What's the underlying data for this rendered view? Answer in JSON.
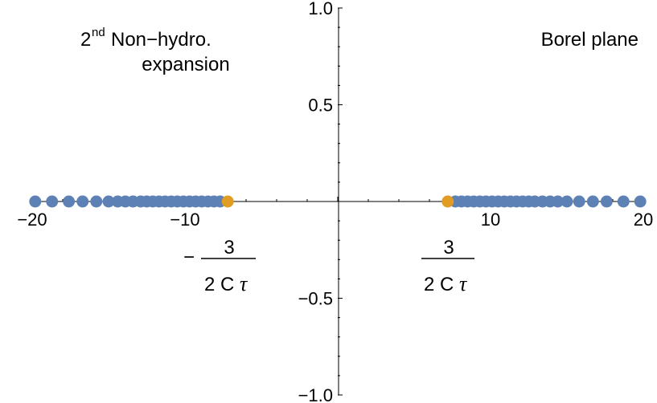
{
  "chart_data": {
    "type": "scatter",
    "title": "",
    "xlabel": "",
    "ylabel": "",
    "xlim": [
      -20,
      20
    ],
    "ylim": [
      -1,
      1
    ],
    "x_ticks": [
      {
        "value": -20,
        "label": "−20"
      },
      {
        "value": -10,
        "label": "−10"
      },
      {
        "value": 10,
        "label": "10"
      },
      {
        "value": 20,
        "label": "20"
      }
    ],
    "y_ticks": [
      {
        "value": 1.0,
        "label": "1.0"
      },
      {
        "value": 0.5,
        "label": "0.5"
      },
      {
        "value": -0.5,
        "label": "−0.5"
      },
      {
        "value": -1.0,
        "label": "−1.0"
      }
    ],
    "series": [
      {
        "color": "#5e81b5",
        "points": [
          {
            "x": -19.8,
            "y": 0
          },
          {
            "x": -18.7,
            "y": 0
          },
          {
            "x": -17.6,
            "y": 0
          },
          {
            "x": -16.7,
            "y": 0
          },
          {
            "x": -15.8,
            "y": 0
          },
          {
            "x": -15.0,
            "y": 0
          },
          {
            "x": -14.4,
            "y": 0
          },
          {
            "x": -13.9,
            "y": 0
          },
          {
            "x": -13.4,
            "y": 0
          },
          {
            "x": -12.9,
            "y": 0
          },
          {
            "x": -12.5,
            "y": 0
          },
          {
            "x": -12.1,
            "y": 0
          },
          {
            "x": -11.7,
            "y": 0
          },
          {
            "x": -11.3,
            "y": 0
          },
          {
            "x": -10.9,
            "y": 0
          },
          {
            "x": -10.5,
            "y": 0
          },
          {
            "x": -10.1,
            "y": 0
          },
          {
            "x": -9.7,
            "y": 0
          },
          {
            "x": -9.3,
            "y": 0
          },
          {
            "x": -8.9,
            "y": 0
          },
          {
            "x": -8.5,
            "y": 0
          },
          {
            "x": -8.1,
            "y": 0
          },
          {
            "x": -7.7,
            "y": 0
          },
          {
            "x": 7.7,
            "y": 0
          },
          {
            "x": 8.1,
            "y": 0
          },
          {
            "x": 8.5,
            "y": 0
          },
          {
            "x": 8.9,
            "y": 0
          },
          {
            "x": 9.3,
            "y": 0
          },
          {
            "x": 9.7,
            "y": 0
          },
          {
            "x": 10.1,
            "y": 0
          },
          {
            "x": 10.5,
            "y": 0
          },
          {
            "x": 10.9,
            "y": 0
          },
          {
            "x": 11.3,
            "y": 0
          },
          {
            "x": 11.7,
            "y": 0
          },
          {
            "x": 12.1,
            "y": 0
          },
          {
            "x": 12.5,
            "y": 0
          },
          {
            "x": 12.9,
            "y": 0
          },
          {
            "x": 13.4,
            "y": 0
          },
          {
            "x": 13.9,
            "y": 0
          },
          {
            "x": 14.4,
            "y": 0
          },
          {
            "x": 15.0,
            "y": 0
          },
          {
            "x": 15.8,
            "y": 0
          },
          {
            "x": 16.7,
            "y": 0
          },
          {
            "x": 17.6,
            "y": 0
          },
          {
            "x": 18.7,
            "y": 0
          },
          {
            "x": 19.8,
            "y": 0
          }
        ]
      },
      {
        "color": "#e19c24",
        "points": [
          {
            "x": -7.2,
            "y": 0
          },
          {
            "x": 7.2,
            "y": 0
          }
        ]
      }
    ],
    "annotations": {
      "top_left_sup_prefix": "2",
      "top_left_sup": "nd",
      "top_left_line1": "Non−hydro.",
      "top_left_line2": "expansion",
      "top_right": "Borel plane",
      "neg_fraction": {
        "sign": "−",
        "numerator": "3",
        "den_prefix": "2 C",
        "den_symbol": "τ"
      },
      "pos_fraction": {
        "numerator": "3",
        "den_prefix": "2 C",
        "den_symbol": "τ"
      }
    },
    "grid": false,
    "legend": "none"
  }
}
